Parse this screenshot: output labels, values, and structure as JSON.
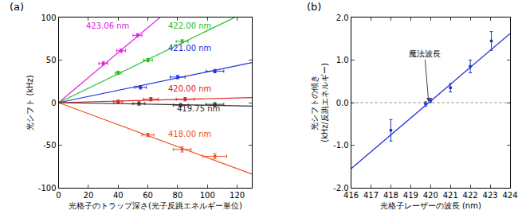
{
  "chart_data": [
    {
      "type": "scatter",
      "panel_label": "(a)",
      "x_label": "光格子のトラップ深さ(光子反跳エネルギー単位)",
      "y_label": "光シフト (kHz)",
      "xlim": [
        0,
        130
      ],
      "xticks": [
        0,
        20,
        40,
        60,
        80,
        100,
        120
      ],
      "ylim": [
        -100,
        100
      ],
      "yticks": [
        -100,
        -50,
        0,
        50,
        100
      ],
      "grid": false,
      "series": [
        {
          "name": "423.06 nm",
          "color": "#e020e0",
          "x": [
            30,
            42,
            53
          ],
          "values": [
            46,
            61,
            79
          ],
          "x_error": [
            3,
            3,
            3
          ],
          "y_error": [
            2,
            2,
            2
          ],
          "fit": {
            "x": [
              0,
              130
            ],
            "y": [
              0,
              191
            ]
          }
        },
        {
          "name": "422.00 nm",
          "color": "#20c020",
          "x": [
            40,
            60,
            83
          ],
          "values": [
            35,
            50,
            72
          ],
          "x_error": [
            2,
            3,
            4
          ],
          "y_error": [
            2,
            2,
            2
          ],
          "fit": {
            "x": [
              0,
              130
            ],
            "y": [
              0,
              110
            ]
          }
        },
        {
          "name": "421.00 nm",
          "color": "#2030e0",
          "x": [
            55,
            80,
            105
          ],
          "values": [
            18,
            30,
            37
          ],
          "x_error": [
            4,
            5,
            6
          ],
          "y_error": [
            2,
            2,
            2
          ],
          "fit": {
            "x": [
              0,
              130
            ],
            "y": [
              0,
              47
            ]
          }
        },
        {
          "name": "420.00 nm",
          "color": "#e02020",
          "x": [
            40,
            62,
            85
          ],
          "values": [
            1,
            4,
            4
          ],
          "x_error": [
            3,
            5,
            6
          ],
          "y_error": [
            2,
            2,
            2
          ],
          "fit": {
            "x": [
              0,
              130
            ],
            "y": [
              0,
              6
            ]
          }
        },
        {
          "name": "419.75 nm",
          "color": "#303030",
          "x": [
            54,
            82,
            105
          ],
          "values": [
            -1,
            -3,
            -2
          ],
          "x_error": [
            4,
            5,
            6
          ],
          "y_error": [
            2,
            2,
            2
          ],
          "fit": {
            "x": [
              0,
              130
            ],
            "y": [
              0,
              -4
            ]
          }
        },
        {
          "name": "418.00 nm",
          "color": "#f05020",
          "x": [
            60,
            83,
            105
          ],
          "values": [
            -38,
            -55,
            -63
          ],
          "x_error": [
            4,
            6,
            8
          ],
          "y_error": [
            2,
            3,
            3
          ],
          "fit": {
            "x": [
              0,
              130
            ],
            "y": [
              0,
              -84
            ]
          }
        }
      ]
    },
    {
      "type": "scatter",
      "panel_label": "(b)",
      "x_label": "光格子レーザーの波長 (nm)",
      "y_label": "光シフトの傾き\n(kHz/反跳エネルギー)",
      "xlim": [
        416,
        424
      ],
      "xticks": [
        416,
        417,
        418,
        419,
        420,
        421,
        422,
        423,
        424
      ],
      "ylim": [
        -2.0,
        2.0
      ],
      "yticks": [
        {
          "value": -2,
          "label": "-2.0"
        },
        {
          "value": -1,
          "label": "-1.0"
        },
        {
          "value": 0,
          "label": "0.0"
        },
        {
          "value": 1,
          "label": "1.0"
        },
        {
          "value": 2,
          "label": "2.0"
        }
      ],
      "grid": false,
      "color": "#2030d0",
      "x": [
        418,
        419.75,
        420,
        421,
        422,
        423.06
      ],
      "values": [
        -0.65,
        -0.03,
        0.05,
        0.35,
        0.85,
        1.45
      ],
      "y_error": [
        0.25,
        0.05,
        0.05,
        0.1,
        0.15,
        0.22
      ],
      "fit": {
        "x": [
          416,
          424
        ],
        "y": [
          -1.55,
          1.62
        ]
      },
      "reference_line": 0,
      "annotation": {
        "text": "魔法波長",
        "x": 419.9,
        "y": 0.02
      }
    }
  ]
}
